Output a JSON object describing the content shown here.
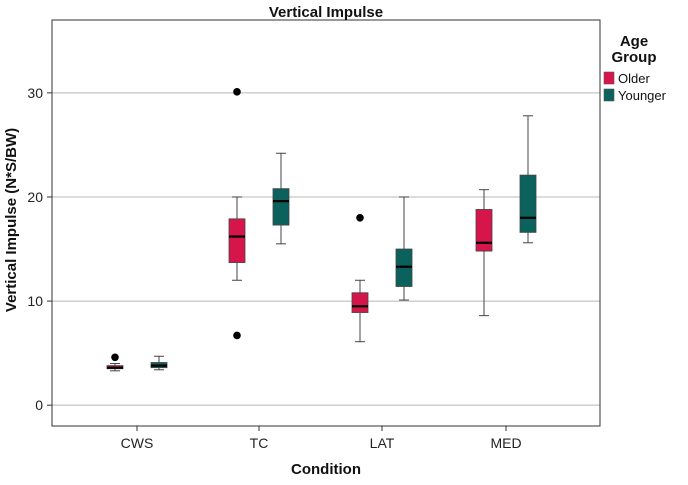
{
  "chart_data": {
    "type": "boxplot",
    "title": "Vertical Impulse",
    "xlabel": "Condition",
    "ylabel": "Vertical Impulse (N*S/BW)",
    "ylim": [
      -2,
      37
    ],
    "yticks": [
      0,
      10,
      20,
      30
    ],
    "grid": "horizontal",
    "categories": [
      "CWS",
      "TC",
      "LAT",
      "MED"
    ],
    "legend": {
      "title_line1": "Age",
      "title_line2": "Group",
      "placement": "top-right"
    },
    "series": [
      {
        "name": "Older",
        "color": "#d6154a",
        "boxes": [
          {
            "category": "CWS",
            "min": 3.3,
            "q1": 3.5,
            "median": 3.6,
            "q3": 3.8,
            "max": 4.0,
            "outliers": [
              4.6
            ]
          },
          {
            "category": "TC",
            "min": 12.0,
            "q1": 13.7,
            "median": 16.2,
            "q3": 17.9,
            "max": 20.0,
            "outliers": [
              30.1,
              6.7
            ]
          },
          {
            "category": "LAT",
            "min": 6.1,
            "q1": 8.9,
            "median": 9.5,
            "q3": 10.8,
            "max": 12.0,
            "outliers": [
              18.0
            ]
          },
          {
            "category": "MED",
            "min": 8.6,
            "q1": 14.8,
            "median": 15.6,
            "q3": 18.8,
            "max": 20.7,
            "outliers": []
          }
        ]
      },
      {
        "name": "Younger",
        "color": "#0b615c",
        "boxes": [
          {
            "category": "CWS",
            "min": 3.4,
            "q1": 3.6,
            "median": 3.8,
            "q3": 4.1,
            "max": 4.7,
            "outliers": []
          },
          {
            "category": "TC",
            "min": 15.5,
            "q1": 17.3,
            "median": 19.6,
            "q3": 20.8,
            "max": 24.2,
            "outliers": []
          },
          {
            "category": "LAT",
            "min": 10.1,
            "q1": 11.4,
            "median": 13.3,
            "q3": 15.0,
            "max": 20.0,
            "outliers": []
          },
          {
            "category": "MED",
            "min": 15.6,
            "q1": 16.6,
            "median": 18.0,
            "q3": 22.1,
            "max": 27.8,
            "outliers": []
          }
        ]
      }
    ]
  }
}
